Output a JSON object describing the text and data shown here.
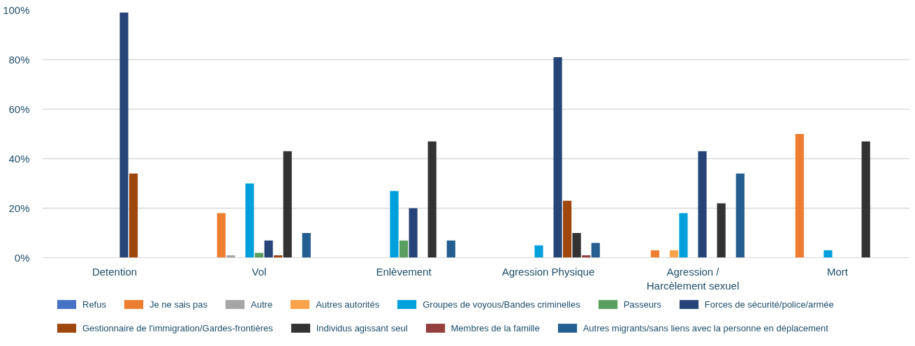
{
  "chart_data": {
    "type": "bar",
    "categories": [
      "Detention",
      "Vol",
      "Enlèvement",
      "Agression Physique",
      "Agression / Harcèlement sexuel",
      "Mort"
    ],
    "ylim": [
      0,
      100
    ],
    "yticks": [
      {
        "value": 0,
        "label": "0%"
      },
      {
        "value": 20,
        "label": "20%"
      },
      {
        "value": 40,
        "label": "40%"
      },
      {
        "value": 60,
        "label": "60%"
      },
      {
        "value": 80,
        "label": "80%"
      },
      {
        "value": 100,
        "label": "100%"
      }
    ],
    "grid": "y",
    "legend": "bottom",
    "series": [
      {
        "name": "Refus",
        "color": "#4472c4",
        "values": [
          0,
          0,
          0,
          0,
          0,
          0
        ]
      },
      {
        "name": "Je ne sais pas",
        "color": "#ed7d31",
        "values": [
          0,
          18,
          0,
          0,
          3,
          50
        ]
      },
      {
        "name": "Autre",
        "color": "#a5a5a5",
        "values": [
          0,
          1,
          0,
          0,
          0,
          0
        ]
      },
      {
        "name": "Autres autorités",
        "color": "#f9a44a",
        "values": [
          0,
          0,
          0,
          0,
          3,
          0
        ]
      },
      {
        "name": "Groupes de voyous/Bandes criminelles",
        "color": "#00a0dc",
        "values": [
          0,
          30,
          27,
          5,
          18,
          3
        ]
      },
      {
        "name": "Passeurs",
        "color": "#5b9f5f",
        "values": [
          0,
          2,
          7,
          0,
          0,
          0
        ]
      },
      {
        "name": "Forces de sécurité/police/armée",
        "color": "#264478",
        "values": [
          99,
          7,
          20,
          81,
          43,
          0
        ]
      },
      {
        "name": "Gestionnaire de l'immigration/Gardes-frontières",
        "color": "#9e480e",
        "values": [
          34,
          1,
          0,
          23,
          0,
          0
        ]
      },
      {
        "name": "Individus agissant seul",
        "color": "#333333",
        "values": [
          0,
          43,
          47,
          10,
          22,
          47
        ]
      },
      {
        "name": "Membres de la famille",
        "color": "#943e3e",
        "values": [
          0,
          0,
          0,
          1,
          0,
          0
        ]
      },
      {
        "name": "Autres migrants/sans liens avec la personne en déplacement",
        "color": "#255e91",
        "values": [
          0,
          10,
          7,
          6,
          34,
          0
        ]
      }
    ]
  }
}
